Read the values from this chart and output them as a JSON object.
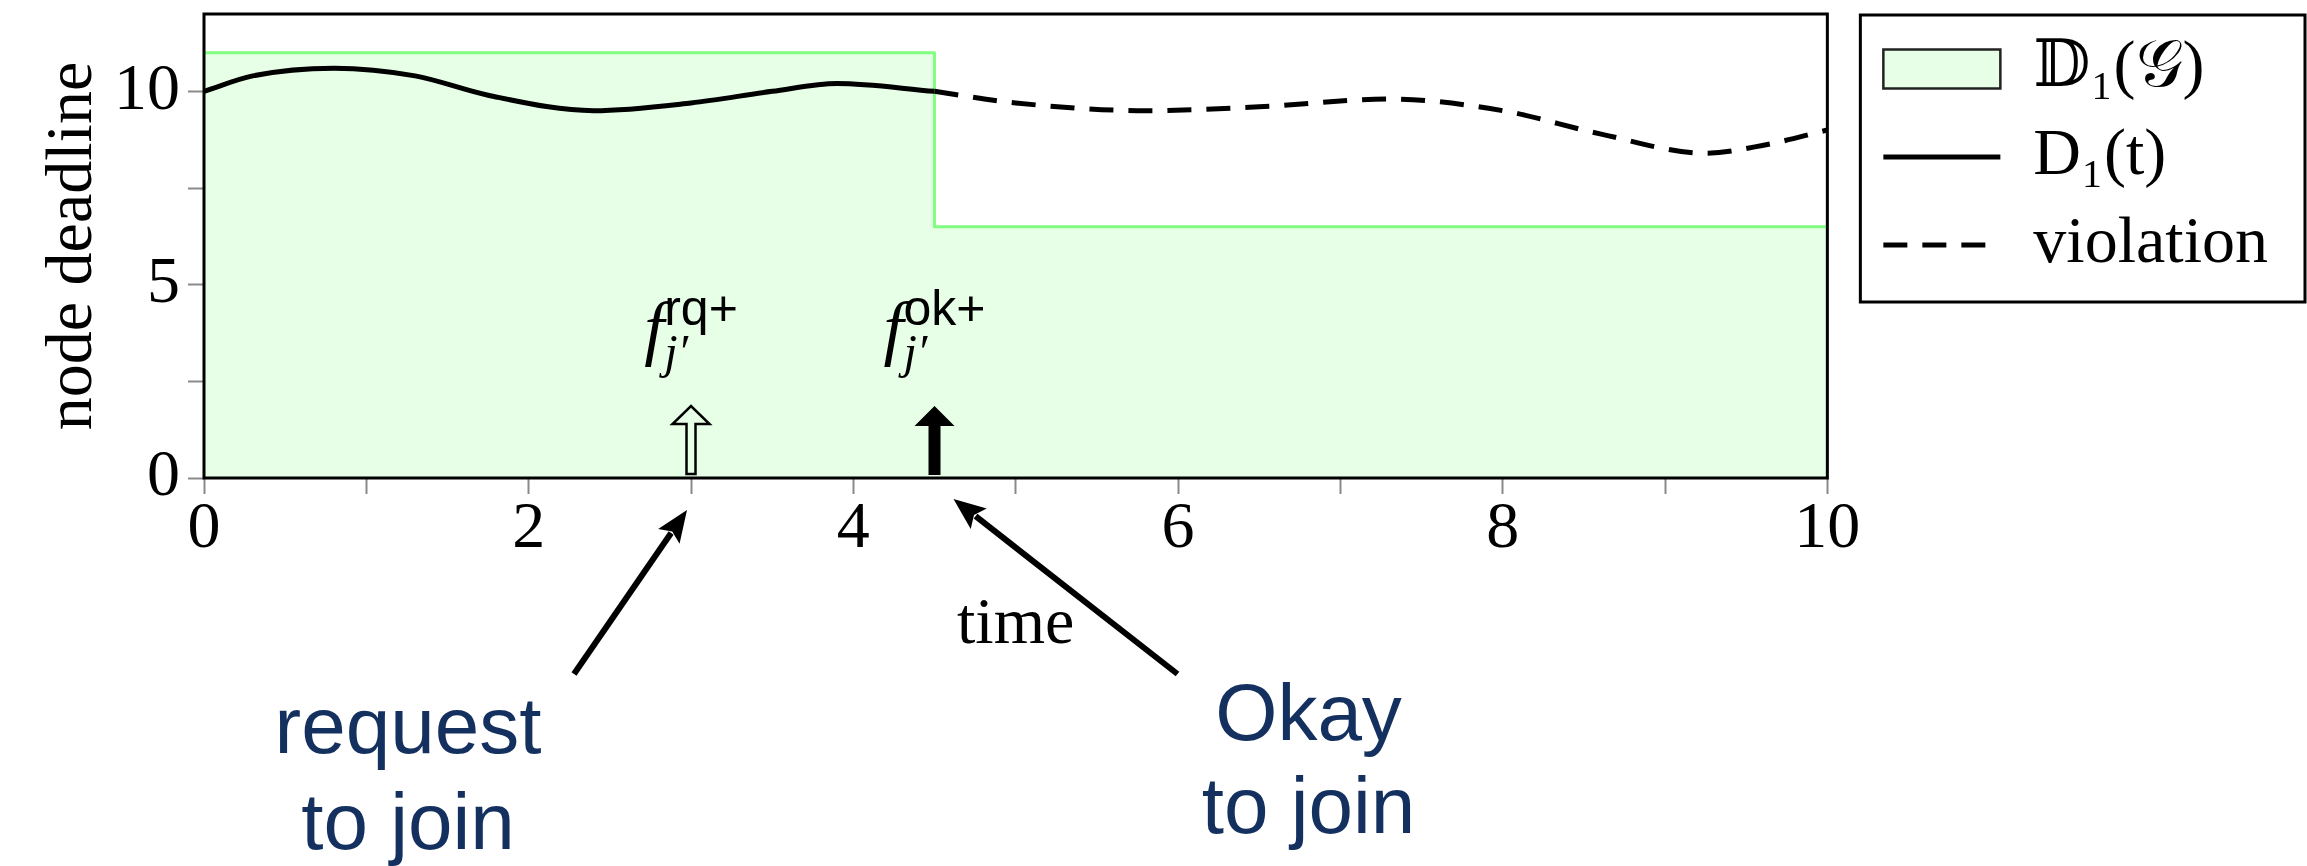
{
  "chart_data": {
    "type": "line",
    "xlabel": "time",
    "ylabel": "node deadline",
    "legend": "top right",
    "xlim": [
      0,
      10
    ],
    "xticks": [
      0,
      {
        "value": 1,
        "label": null
      },
      2,
      {
        "value": 3,
        "label": null
      },
      4,
      {
        "value": 5,
        "label": null
      },
      6,
      {
        "value": 7,
        "label": null
      },
      8,
      {
        "value": 9,
        "label": null
      },
      10
    ],
    "ylim": [
      0,
      12
    ],
    "yticks": [
      0,
      {
        "value": 2.5,
        "label": null
      },
      5,
      {
        "value": 7.5,
        "label": null
      },
      10
    ],
    "series": [
      {
        "name": "𝔻₁(𝒢)",
        "type": "area",
        "color": "#80ff80",
        "x": [
          0,
          4.5,
          4.5,
          10
        ],
        "values": [
          11,
          11,
          6.5,
          6.5
        ]
      },
      {
        "name": "D₁(t)",
        "type": "line",
        "color": "#000000",
        "line_style": "solid",
        "x": [
          0,
          0.3,
          0.8,
          1.3,
          1.75,
          2.4,
          3.0,
          3.5,
          3.9,
          4.5
        ],
        "values": [
          10.0,
          10.4,
          10.6,
          10.4,
          9.9,
          9.5,
          9.7,
          10.0,
          10.2,
          10.0
        ]
      },
      {
        "name": "violation",
        "type": "line",
        "color": "#000000",
        "line_style": "dashed",
        "x": [
          4.5,
          5.0,
          5.8,
          6.5,
          7.3,
          8.0,
          8.6,
          9.25,
          9.6,
          10
        ],
        "values": [
          10.0,
          9.7,
          9.5,
          9.6,
          9.8,
          9.5,
          8.9,
          8.4,
          8.6,
          9.0
        ]
      }
    ],
    "annotations": [
      {
        "text": "f$_{j′}$$^{rq+}$",
        "x": 3,
        "y": 0
      },
      {
        "text": "f$_{j′}$$^{ok+}$",
        "x": 4.5,
        "y": 0
      },
      "request\nto join",
      "Okay\nto join"
    ]
  }
}
